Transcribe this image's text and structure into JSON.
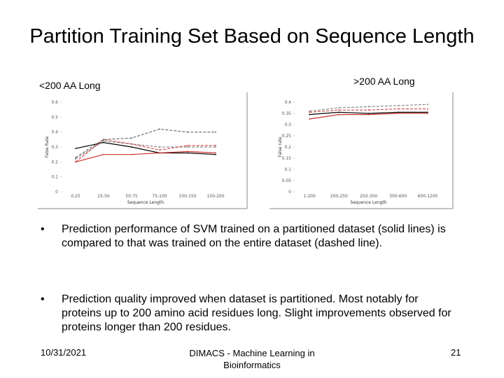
{
  "slide": {
    "title": "Partition Training Set Based on Sequence Length",
    "bullets": [
      {
        "marker": "•",
        "text": "Prediction performance of SVM trained on a partitioned dataset (solid lines) is compared to that was trained on the entire dataset (dashed line)."
      },
      {
        "marker": "•",
        "text": "Prediction quality improved when dataset is partitioned.  Most notably for proteins up to 200 amino acid residues long.  Slight improvements observed for proteins longer than 200 residues."
      }
    ],
    "footer": {
      "date": "10/31/2021",
      "center": "DIMACS - Machine Learning in Bioinformatics",
      "page": "21"
    }
  },
  "chart_data": [
    {
      "type": "line",
      "title": "<200 AA Long",
      "xlabel": "Sequence Length",
      "ylabel": "False Rate",
      "categories": [
        "0-25",
        "25-50",
        "50-75",
        "75-100",
        "100-150",
        "150-200"
      ],
      "ylim": [
        0,
        0.6
      ],
      "yticks": [
        "0",
        "0.1",
        "0.2",
        "0.3",
        "0.4",
        "0.5",
        "0.6"
      ],
      "series": [
        {
          "name": "partitioned",
          "style": "solid",
          "color": "#000000",
          "values": [
            0.29,
            0.33,
            0.3,
            0.26,
            0.26,
            0.25
          ]
        },
        {
          "name": "partitioned",
          "style": "solid",
          "color": "#cc3333",
          "values": [
            0.2,
            0.25,
            0.25,
            0.26,
            0.27,
            0.26
          ]
        },
        {
          "name": "entire dataset",
          "style": "dashed",
          "color": "#777777",
          "values": [
            0.22,
            0.34,
            0.32,
            0.3,
            0.3,
            0.3
          ]
        },
        {
          "name": "entire dataset",
          "style": "dashed",
          "color": "#cc3333",
          "values": [
            0.2,
            0.35,
            0.32,
            0.28,
            0.31,
            0.31
          ]
        },
        {
          "name": "entire dataset",
          "style": "dashed",
          "color": "#555555",
          "values": [
            0.23,
            0.35,
            0.36,
            0.42,
            0.4,
            0.4
          ]
        }
      ]
    },
    {
      "type": "line",
      "title": ">200 AA Long",
      "xlabel": "Sequence Length",
      "ylabel": "False rate",
      "categories": [
        "1-200",
        "200-250",
        "250-300",
        "300-600",
        "600-1200"
      ],
      "ylim": [
        0,
        0.4
      ],
      "yticks": [
        "0",
        "0.05",
        "0.1",
        "0.15",
        "0.2",
        "0.25",
        "0.3",
        "0.35",
        "0.4"
      ],
      "series": [
        {
          "name": "partitioned",
          "style": "solid",
          "color": "#000000",
          "values": [
            0.345,
            0.355,
            0.35,
            0.355,
            0.355
          ]
        },
        {
          "name": "partitioned",
          "style": "solid",
          "color": "#cc3333",
          "values": [
            0.325,
            0.345,
            0.345,
            0.35,
            0.35
          ]
        },
        {
          "name": "entire dataset",
          "style": "dashed",
          "color": "#777777",
          "values": [
            0.36,
            0.375,
            0.38,
            0.385,
            0.39
          ]
        },
        {
          "name": "entire dataset",
          "style": "dashed",
          "color": "#cc3333",
          "values": [
            0.355,
            0.365,
            0.365,
            0.37,
            0.37
          ]
        }
      ]
    }
  ]
}
